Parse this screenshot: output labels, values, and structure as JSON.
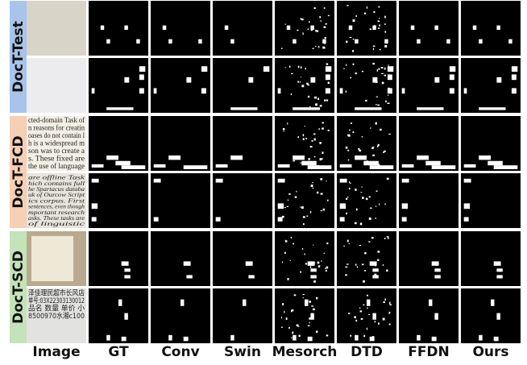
{
  "figure": {
    "row_groups": [
      {
        "label": "DocT-Test",
        "color": "#a9c4ea"
      },
      {
        "label": "DocT-FCD",
        "color": "#f6cfb4"
      },
      {
        "label": "DocT-SCD",
        "color": "#c4e3b8"
      }
    ],
    "columns": [
      "Image",
      "GT",
      "Conv",
      "Swin",
      "Mesorch",
      "DTD",
      "FFDN",
      "Ours"
    ],
    "image_text": [
      [],
      [],
      [
        "cted-domain Task of",
        "n reasons for creatin",
        "oases do not contain l",
        "h is a widespread m",
        "son was to create a",
        "s. These fixed are",
        "the use of language"
      ],
      [
        "are offline Task",
        "hich contains full",
        "he Spartacus databa",
        "uk of Ourcow Script",
        "ics corpus. First",
        "sentences, even though",
        "mportant research",
        "asks. These tasks are",
        "of linguistic"
      ],
      [],
      [
        "泽佳理民超市长风店",
        "单号:03X22303130012",
        "品名  数量  单价  小",
        "8500970水湘c100"
      ]
    ]
  }
}
